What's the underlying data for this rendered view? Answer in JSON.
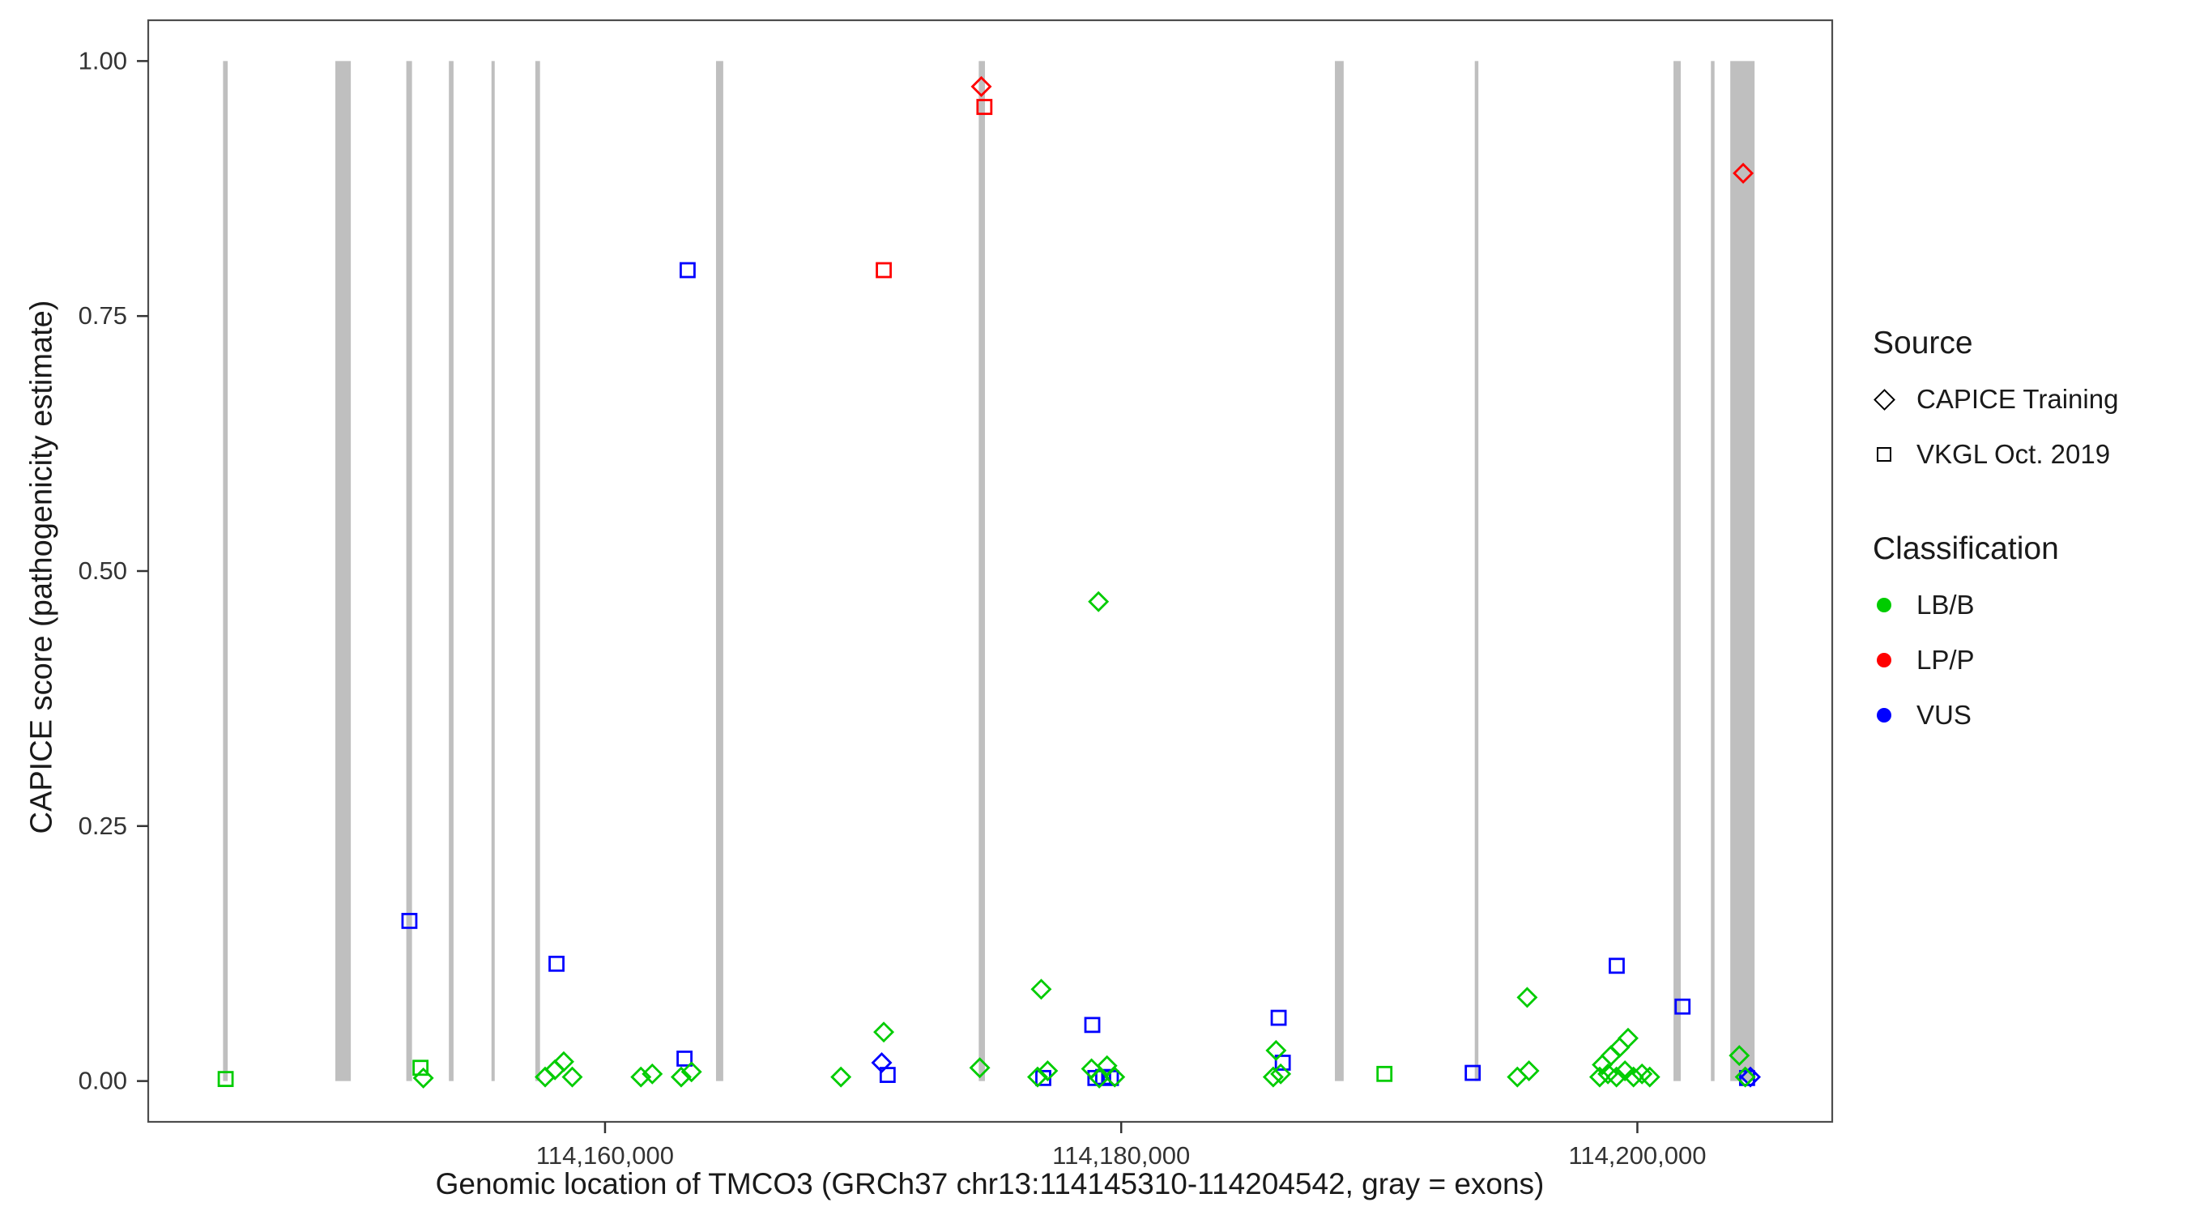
{
  "legend": {
    "source_title": "Source",
    "source_items": [
      {
        "label": "CAPICE Training",
        "shape": "diamond"
      },
      {
        "label": "VKGL Oct. 2019",
        "shape": "square"
      }
    ],
    "classification_title": "Classification",
    "classification_items": [
      {
        "label": "LB/B",
        "color": "#00CC00"
      },
      {
        "label": "LP/P",
        "color": "#FF0000"
      },
      {
        "label": "VUS",
        "color": "#0000FF"
      }
    ]
  },
  "chart_data": {
    "type": "scatter",
    "title": "",
    "xlabel": "Genomic location of TMCO3 (GRCh37 chr13:114145310-114204542, gray = exons)",
    "ylabel": "CAPICE score (pathogenicity estimate)",
    "xlim": [
      114142300,
      114207550
    ],
    "ylim": [
      -0.04,
      1.04
    ],
    "grid": false,
    "legend_position": "right",
    "x_ticks": [
      {
        "value": 114160000,
        "label": "114,160,000"
      },
      {
        "value": 114180000,
        "label": "114,180,000"
      },
      {
        "value": 114200000,
        "label": "114,200,000"
      }
    ],
    "y_ticks": [
      {
        "value": 0.0,
        "label": "0.00"
      },
      {
        "value": 0.25,
        "label": "0.25"
      },
      {
        "value": 0.5,
        "label": "0.50"
      },
      {
        "value": 0.75,
        "label": "0.75"
      },
      {
        "value": 1.0,
        "label": "1.00"
      }
    ],
    "exon_color": "#BFBFBF",
    "class_colors": {
      "LB/B": "#00CC00",
      "LP/P": "#FF0000",
      "VUS": "#0000FF"
    },
    "source_shapes": {
      "CAPICE Training": "diamond",
      "VKGL Oct. 2019": "square"
    },
    "exons": [
      {
        "start": 114145200,
        "end": 114145380
      },
      {
        "start": 114149550,
        "end": 114150150
      },
      {
        "start": 114152300,
        "end": 114152520
      },
      {
        "start": 114153950,
        "end": 114154130
      },
      {
        "start": 114155600,
        "end": 114155720
      },
      {
        "start": 114157300,
        "end": 114157480
      },
      {
        "start": 114164300,
        "end": 114164580
      },
      {
        "start": 114174480,
        "end": 114174720
      },
      {
        "start": 114188280,
        "end": 114188620
      },
      {
        "start": 114193700,
        "end": 114193840
      },
      {
        "start": 114201400,
        "end": 114201680
      },
      {
        "start": 114202850,
        "end": 114202990
      },
      {
        "start": 114203600,
        "end": 114204542
      }
    ],
    "points": [
      {
        "x": 114174580,
        "y": 0.975,
        "classification": "LP/P",
        "source": "CAPICE Training"
      },
      {
        "x": 114174700,
        "y": 0.955,
        "classification": "LP/P",
        "source": "VKGL Oct. 2019"
      },
      {
        "x": 114170800,
        "y": 0.795,
        "classification": "LP/P",
        "source": "VKGL Oct. 2019"
      },
      {
        "x": 114204100,
        "y": 0.89,
        "classification": "LP/P",
        "source": "CAPICE Training"
      },
      {
        "x": 114163200,
        "y": 0.795,
        "classification": "VUS",
        "source": "VKGL Oct. 2019"
      },
      {
        "x": 114152420,
        "y": 0.157,
        "classification": "VUS",
        "source": "VKGL Oct. 2019"
      },
      {
        "x": 114158120,
        "y": 0.115,
        "classification": "VUS",
        "source": "VKGL Oct. 2019"
      },
      {
        "x": 114178880,
        "y": 0.055,
        "classification": "VUS",
        "source": "VKGL Oct. 2019"
      },
      {
        "x": 114186100,
        "y": 0.062,
        "classification": "VUS",
        "source": "VKGL Oct. 2019"
      },
      {
        "x": 114199200,
        "y": 0.113,
        "classification": "VUS",
        "source": "VKGL Oct. 2019"
      },
      {
        "x": 114201750,
        "y": 0.073,
        "classification": "VUS",
        "source": "VKGL Oct. 2019"
      },
      {
        "x": 114163080,
        "y": 0.022,
        "classification": "VUS",
        "source": "VKGL Oct. 2019"
      },
      {
        "x": 114170950,
        "y": 0.006,
        "classification": "VUS",
        "source": "VKGL Oct. 2019"
      },
      {
        "x": 114176980,
        "y": 0.003,
        "classification": "VUS",
        "source": "VKGL Oct. 2019"
      },
      {
        "x": 114179000,
        "y": 0.003,
        "classification": "VUS",
        "source": "VKGL Oct. 2019"
      },
      {
        "x": 114179300,
        "y": 0.004,
        "classification": "VUS",
        "source": "VKGL Oct. 2019"
      },
      {
        "x": 114179600,
        "y": 0.003,
        "classification": "VUS",
        "source": "VKGL Oct. 2019"
      },
      {
        "x": 114186260,
        "y": 0.018,
        "classification": "VUS",
        "source": "VKGL Oct. 2019"
      },
      {
        "x": 114193620,
        "y": 0.008,
        "classification": "VUS",
        "source": "VKGL Oct. 2019"
      },
      {
        "x": 114204250,
        "y": 0.003,
        "classification": "VUS",
        "source": "VKGL Oct. 2019"
      },
      {
        "x": 114170720,
        "y": 0.018,
        "classification": "VUS",
        "source": "CAPICE Training"
      },
      {
        "x": 114204380,
        "y": 0.004,
        "classification": "VUS",
        "source": "CAPICE Training"
      },
      {
        "x": 114145300,
        "y": 0.002,
        "classification": "LB/B",
        "source": "VKGL Oct. 2019"
      },
      {
        "x": 114152850,
        "y": 0.013,
        "classification": "LB/B",
        "source": "VKGL Oct. 2019"
      },
      {
        "x": 114190200,
        "y": 0.007,
        "classification": "LB/B",
        "source": "VKGL Oct. 2019"
      },
      {
        "x": 114152960,
        "y": 0.003,
        "classification": "LB/B",
        "source": "CAPICE Training"
      },
      {
        "x": 114157680,
        "y": 0.004,
        "classification": "LB/B",
        "source": "CAPICE Training"
      },
      {
        "x": 114158060,
        "y": 0.011,
        "classification": "LB/B",
        "source": "CAPICE Training"
      },
      {
        "x": 114158400,
        "y": 0.019,
        "classification": "LB/B",
        "source": "CAPICE Training"
      },
      {
        "x": 114158730,
        "y": 0.004,
        "classification": "LB/B",
        "source": "CAPICE Training"
      },
      {
        "x": 114161390,
        "y": 0.004,
        "classification": "LB/B",
        "source": "CAPICE Training"
      },
      {
        "x": 114161830,
        "y": 0.007,
        "classification": "LB/B",
        "source": "CAPICE Training"
      },
      {
        "x": 114162950,
        "y": 0.004,
        "classification": "LB/B",
        "source": "CAPICE Training"
      },
      {
        "x": 114163350,
        "y": 0.009,
        "classification": "LB/B",
        "source": "CAPICE Training"
      },
      {
        "x": 114169140,
        "y": 0.004,
        "classification": "LB/B",
        "source": "CAPICE Training"
      },
      {
        "x": 114170800,
        "y": 0.048,
        "classification": "LB/B",
        "source": "CAPICE Training"
      },
      {
        "x": 114174520,
        "y": 0.013,
        "classification": "LB/B",
        "source": "CAPICE Training"
      },
      {
        "x": 114176900,
        "y": 0.09,
        "classification": "LB/B",
        "source": "CAPICE Training"
      },
      {
        "x": 114176760,
        "y": 0.004,
        "classification": "LB/B",
        "source": "CAPICE Training"
      },
      {
        "x": 114177150,
        "y": 0.01,
        "classification": "LB/B",
        "source": "CAPICE Training"
      },
      {
        "x": 114179120,
        "y": 0.47,
        "classification": "LB/B",
        "source": "CAPICE Training"
      },
      {
        "x": 114178850,
        "y": 0.012,
        "classification": "LB/B",
        "source": "CAPICE Training"
      },
      {
        "x": 114179150,
        "y": 0.003,
        "classification": "LB/B",
        "source": "CAPICE Training"
      },
      {
        "x": 114179450,
        "y": 0.015,
        "classification": "LB/B",
        "source": "CAPICE Training"
      },
      {
        "x": 114179750,
        "y": 0.004,
        "classification": "LB/B",
        "source": "CAPICE Training"
      },
      {
        "x": 114186000,
        "y": 0.03,
        "classification": "LB/B",
        "source": "CAPICE Training"
      },
      {
        "x": 114185890,
        "y": 0.004,
        "classification": "LB/B",
        "source": "CAPICE Training"
      },
      {
        "x": 114186180,
        "y": 0.007,
        "classification": "LB/B",
        "source": "CAPICE Training"
      },
      {
        "x": 114195730,
        "y": 0.082,
        "classification": "LB/B",
        "source": "CAPICE Training"
      },
      {
        "x": 114195350,
        "y": 0.004,
        "classification": "LB/B",
        "source": "CAPICE Training"
      },
      {
        "x": 114195800,
        "y": 0.01,
        "classification": "LB/B",
        "source": "CAPICE Training"
      },
      {
        "x": 114198640,
        "y": 0.016,
        "classification": "LB/B",
        "source": "CAPICE Training"
      },
      {
        "x": 114198980,
        "y": 0.025,
        "classification": "LB/B",
        "source": "CAPICE Training"
      },
      {
        "x": 114199310,
        "y": 0.033,
        "classification": "LB/B",
        "source": "CAPICE Training"
      },
      {
        "x": 114199640,
        "y": 0.042,
        "classification": "LB/B",
        "source": "CAPICE Training"
      },
      {
        "x": 114198540,
        "y": 0.004,
        "classification": "LB/B",
        "source": "CAPICE Training"
      },
      {
        "x": 114198860,
        "y": 0.007,
        "classification": "LB/B",
        "source": "CAPICE Training"
      },
      {
        "x": 114199190,
        "y": 0.004,
        "classification": "LB/B",
        "source": "CAPICE Training"
      },
      {
        "x": 114199520,
        "y": 0.01,
        "classification": "LB/B",
        "source": "CAPICE Training"
      },
      {
        "x": 114199850,
        "y": 0.004,
        "classification": "LB/B",
        "source": "CAPICE Training"
      },
      {
        "x": 114200180,
        "y": 0.007,
        "classification": "LB/B",
        "source": "CAPICE Training"
      },
      {
        "x": 114200480,
        "y": 0.004,
        "classification": "LB/B",
        "source": "CAPICE Training"
      },
      {
        "x": 114203950,
        "y": 0.025,
        "classification": "LB/B",
        "source": "CAPICE Training"
      },
      {
        "x": 114204180,
        "y": 0.004,
        "classification": "LB/B",
        "source": "CAPICE Training"
      }
    ]
  }
}
